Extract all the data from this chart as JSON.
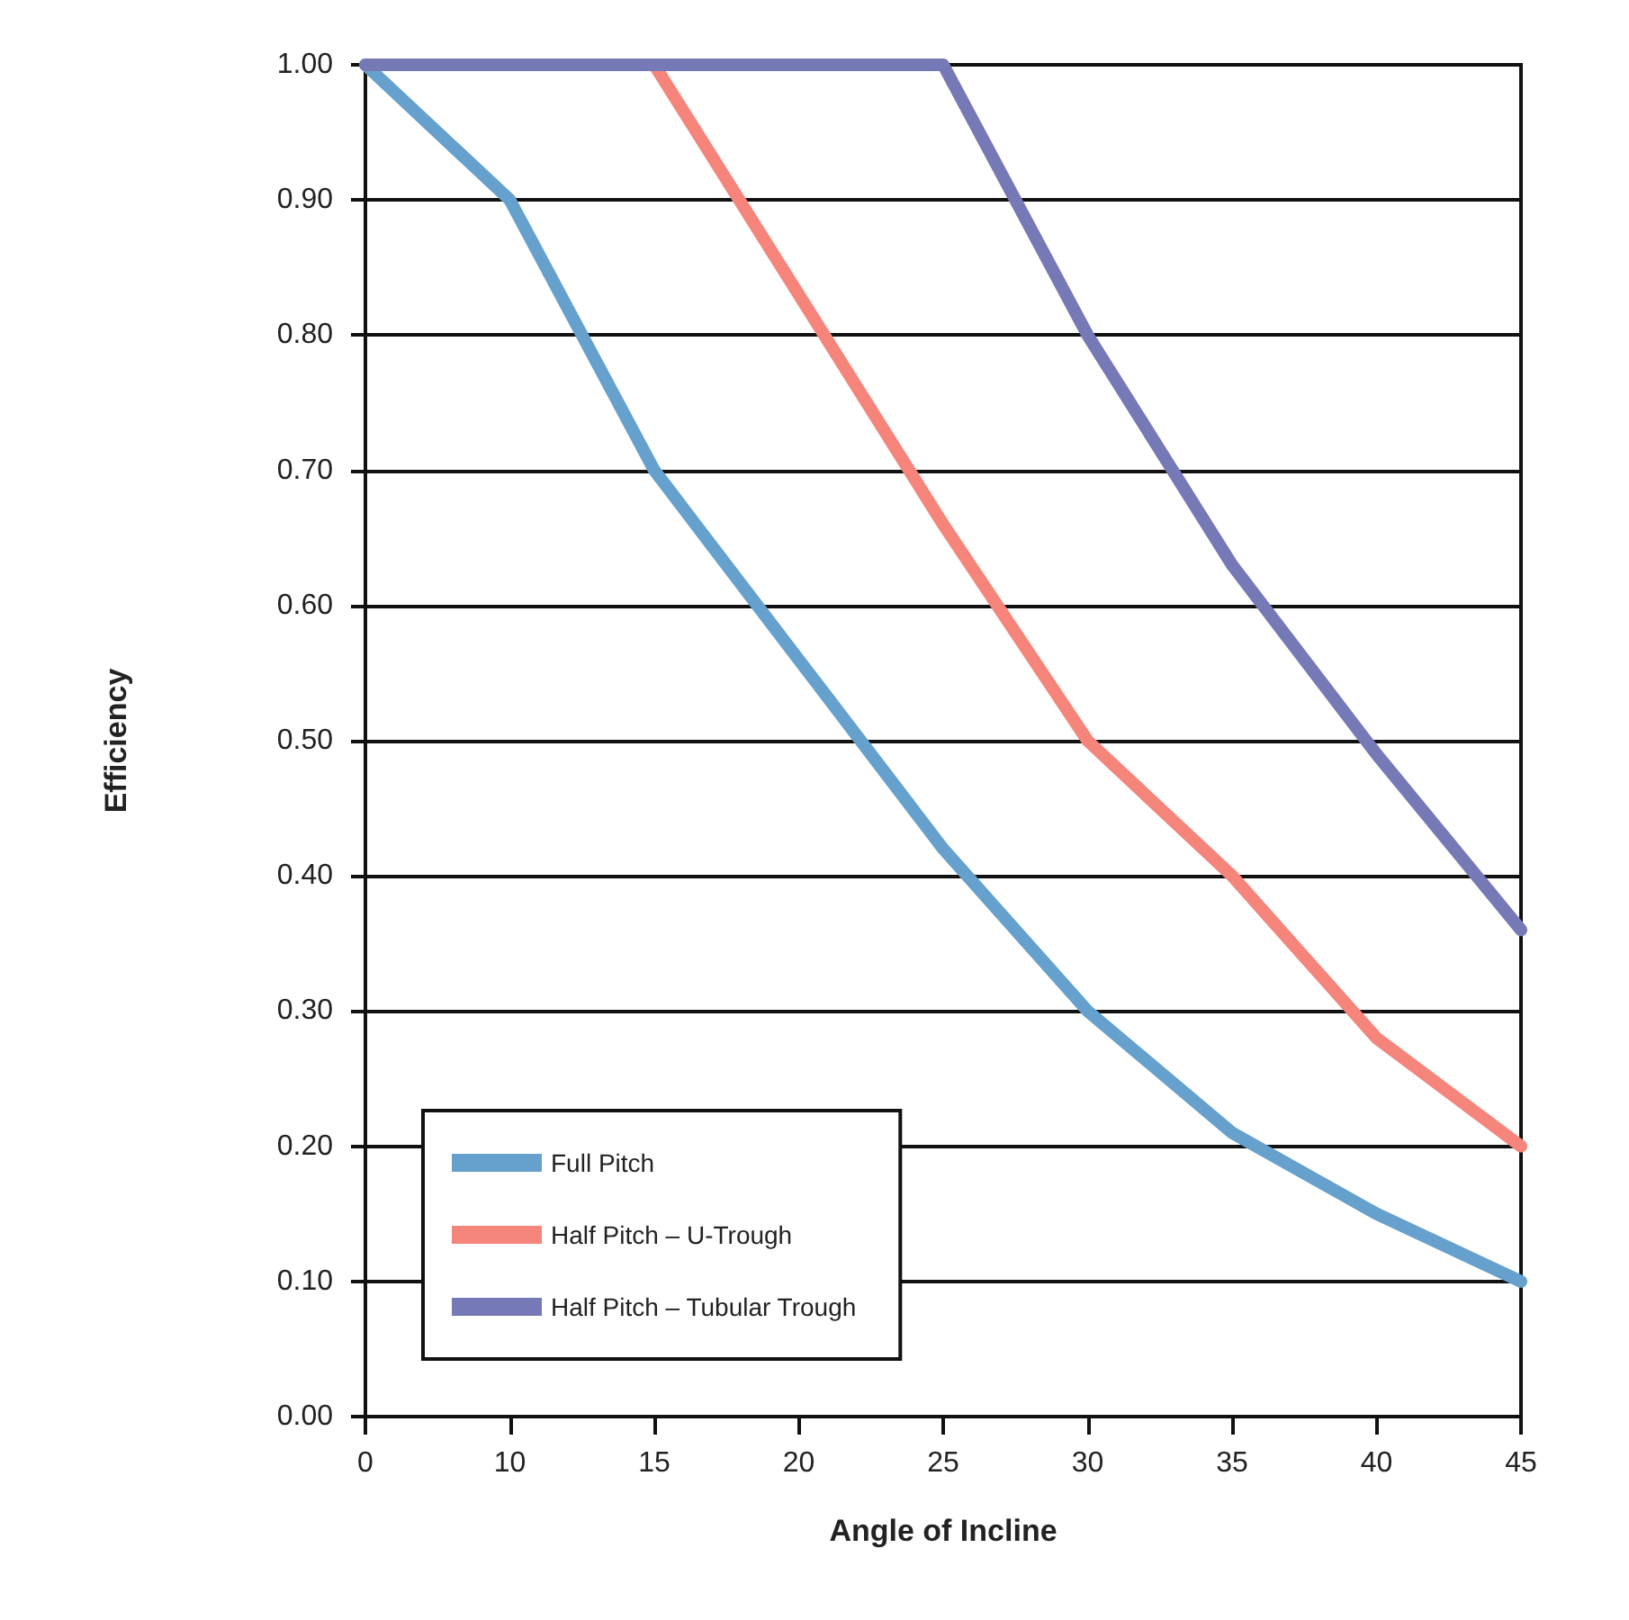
{
  "chart_data": {
    "type": "line",
    "xlabel": "Angle of Incline",
    "ylabel": "Efficiency",
    "categories": [
      "0",
      "10",
      "15",
      "20",
      "25",
      "30",
      "35",
      "40",
      "45"
    ],
    "series": [
      {
        "name": "Full Pitch",
        "color": "#66a1cd",
        "values": [
          1.0,
          0.9,
          0.7,
          0.56,
          0.42,
          0.3,
          0.21,
          0.15,
          0.1
        ]
      },
      {
        "name": "Half Pitch – U-Trough",
        "color": "#f5847b",
        "values": [
          null,
          null,
          1.0,
          0.83,
          0.66,
          0.5,
          0.4,
          0.28,
          0.2
        ]
      },
      {
        "name": "Half Pitch – Tubular Trough",
        "color": "#7579b5",
        "values": [
          1.0,
          1.0,
          1.0,
          1.0,
          1.0,
          0.8,
          0.63,
          0.49,
          0.36
        ]
      }
    ],
    "ylim": [
      0,
      1
    ],
    "yticks": [
      {
        "value": 0,
        "label": "0.00"
      },
      {
        "value": 0.1,
        "label": "0.10"
      },
      {
        "value": 0.2,
        "label": "0.20"
      },
      {
        "value": 0.3,
        "label": "0.30"
      },
      {
        "value": 0.4,
        "label": "0.40"
      },
      {
        "value": 0.5,
        "label": "0.50"
      },
      {
        "value": 0.6,
        "label": "0.60"
      },
      {
        "value": 0.7,
        "label": "0.70"
      },
      {
        "value": 0.8,
        "label": "0.80"
      },
      {
        "value": 0.9,
        "label": "0.90"
      },
      {
        "value": 1,
        "label": "1.00"
      }
    ],
    "grid": "y",
    "legend": "bottom left",
    "marker": "none",
    "line_style": "solid"
  }
}
